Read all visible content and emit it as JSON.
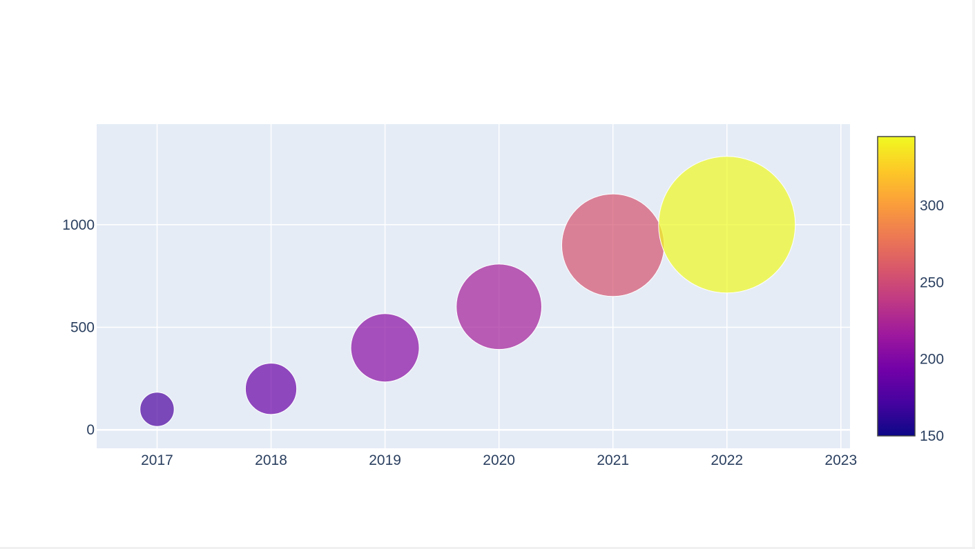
{
  "chart_data": {
    "type": "scatter",
    "title": "",
    "xlabel": "",
    "ylabel": "",
    "x": [
      2017,
      2018,
      2019,
      2020,
      2021,
      2022
    ],
    "y": [
      100,
      200,
      400,
      600,
      900,
      1000
    ],
    "marker_size": [
      50,
      75,
      100,
      125,
      150,
      200
    ],
    "marker_color_value": [
      175,
      190,
      205,
      220,
      255,
      345
    ],
    "xlim": [
      2016.47,
      2023.08
    ],
    "ylim": [
      -90,
      1490
    ],
    "x_ticks": [
      "2017",
      "2018",
      "2019",
      "2020",
      "2021",
      "2022",
      "2023"
    ],
    "y_ticks": [
      "0",
      "500",
      "1000"
    ],
    "colorbar": {
      "range": [
        150,
        345
      ],
      "ticks": [
        "150",
        "200",
        "250",
        "300"
      ],
      "colorscale": [
        "#0d0887",
        "#46039f",
        "#7201a8",
        "#9c179e",
        "#bd3786",
        "#d8576b",
        "#ed7953",
        "#fb9f3a",
        "#fdca26",
        "#f0f921"
      ]
    },
    "grid": true,
    "legend": "none",
    "colors": {
      "plot_background": "#e5ecf6",
      "gridline": "#ffffff",
      "tick_text": "#2a3f5f"
    }
  }
}
